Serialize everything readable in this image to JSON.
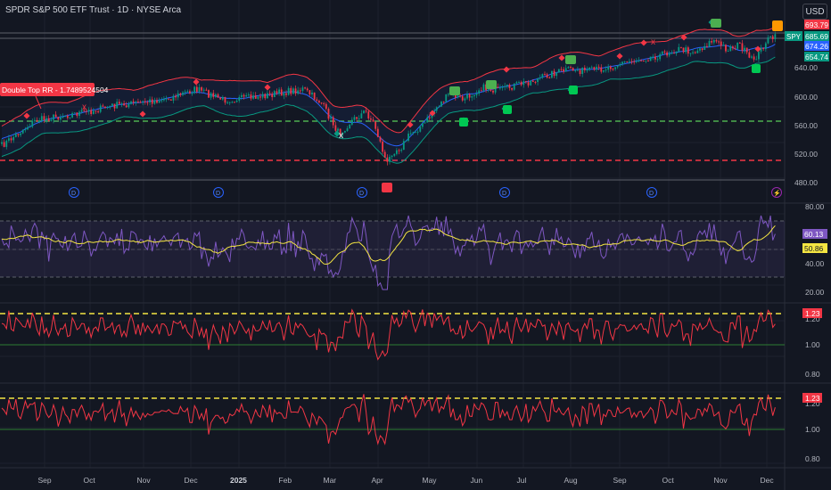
{
  "header": {
    "title": "SPDR S&P 500 ETF Trust · 1D · NYSE Arca",
    "currency": "USD"
  },
  "price_pane": {
    "y_ticks": [
      "640.00",
      "600.00",
      "560.00",
      "520.00",
      "480.00"
    ],
    "annotation": "Double Top RR - 1.7489524504",
    "symbol_tag": "SPY",
    "labels": [
      {
        "text": "693.79",
        "color": "#f23645"
      },
      {
        "text": "685.69",
        "color": "#089981"
      },
      {
        "text": "674.26",
        "color": "#2962ff"
      },
      {
        "text": "654.74",
        "color": "#089981"
      }
    ],
    "support_line": "560",
    "resistance_line": "510",
    "dividend_marker": "D"
  },
  "rsi_pane": {
    "y_ticks": [
      "80.00",
      "60.00",
      "40.00",
      "20.00"
    ],
    "labels": [
      {
        "text": "60.13",
        "color": "#7e57c2"
      },
      {
        "text": "50.86",
        "color": "#f5e642"
      }
    ]
  },
  "ratio_pane_1": {
    "y_ticks": [
      "1.20",
      "1.00",
      "0.80"
    ],
    "label": {
      "text": "1.23",
      "color": "#f23645"
    }
  },
  "ratio_pane_2": {
    "y_ticks": [
      "1.20",
      "1.00",
      "0.80"
    ],
    "label": {
      "text": "1.23",
      "color": "#f23645"
    }
  },
  "time_axis": [
    "Sep",
    "Oct",
    "Nov",
    "Dec",
    "2025",
    "Feb",
    "Mar",
    "Apr",
    "May",
    "Jun",
    "Jul",
    "Aug",
    "Sep",
    "Oct",
    "Nov",
    "Dec"
  ],
  "colors": {
    "background": "#131722",
    "up": "#089981",
    "down": "#f23645",
    "bb_upper": "#f23645",
    "bb_basis": "#2962ff",
    "bb_lower": "#089981",
    "rsi": "#7e57c2",
    "rsi_ma": "#f5e642",
    "ratio": "#f23645",
    "dashed_yellow": "#f5e642"
  }
}
